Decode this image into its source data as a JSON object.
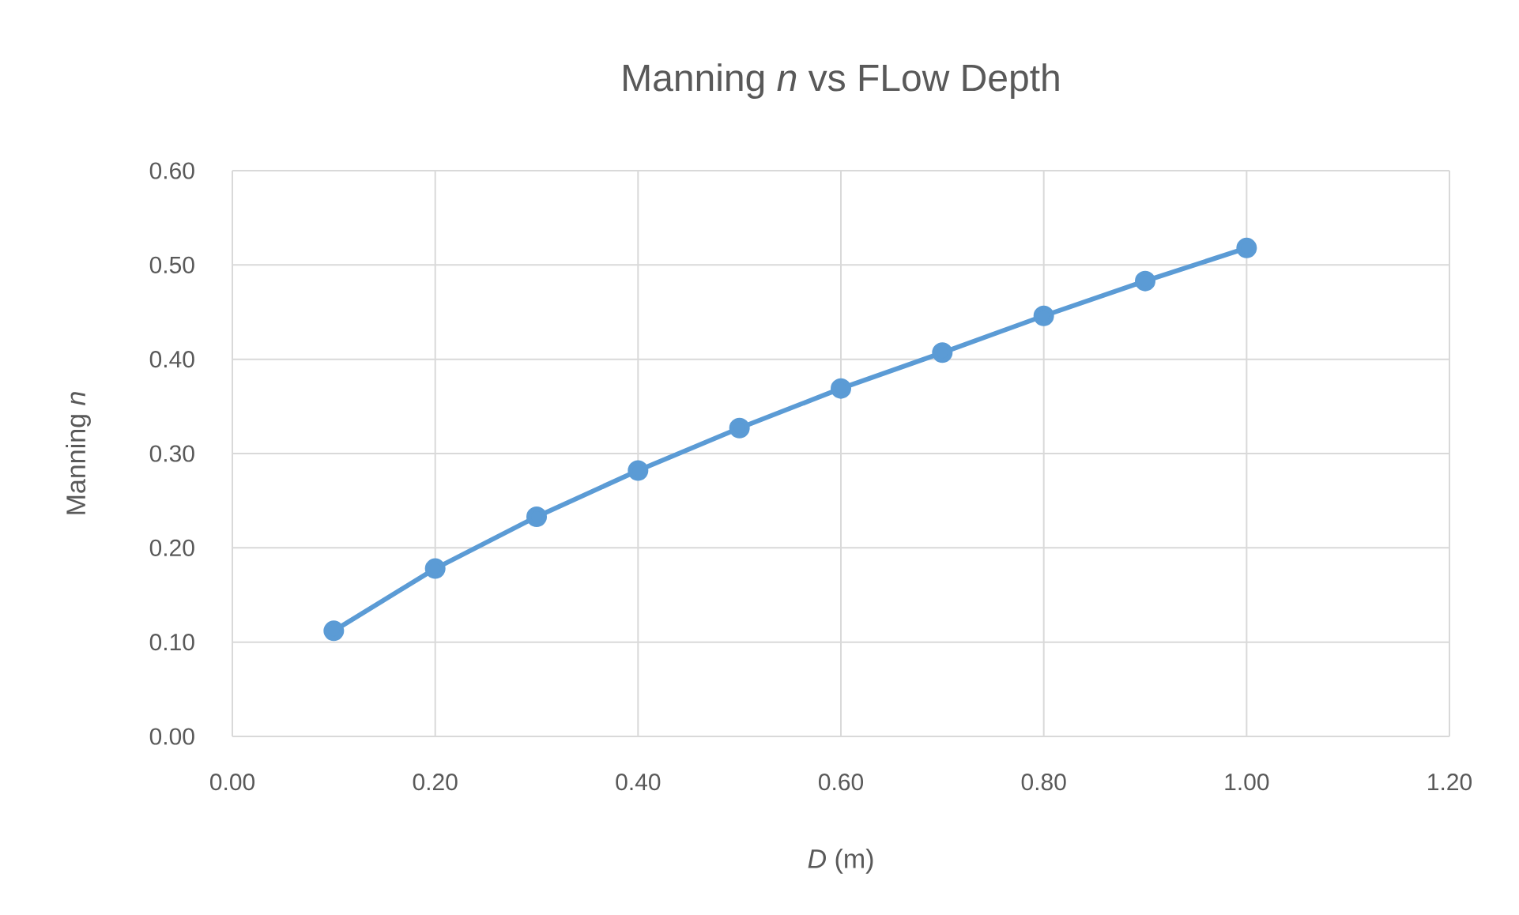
{
  "chart_data": {
    "type": "line",
    "title": "Manning *n* vs FLow Depth",
    "xlabel": "*D* (m)",
    "ylabel": "Manning *n*",
    "x": [
      0.1,
      0.2,
      0.3,
      0.4,
      0.5,
      0.6,
      0.7,
      0.8,
      0.9,
      1.0
    ],
    "series": [
      {
        "color": "#5b9bd5",
        "values": [
          0.112,
          0.178,
          0.233,
          0.282,
          0.327,
          0.369,
          0.407,
          0.446,
          0.483,
          0.518
        ]
      }
    ],
    "xlim": [
      0,
      1.2
    ],
    "ylim": [
      0,
      0.6
    ],
    "xticks": [
      {
        "value": 0,
        "label": "0.00"
      },
      {
        "value": 0.2,
        "label": "0.20"
      },
      {
        "value": 0.4,
        "label": "0.40"
      },
      {
        "value": 0.6,
        "label": "0.60"
      },
      {
        "value": 0.8,
        "label": "0.80"
      },
      {
        "value": 1.0,
        "label": "1.00"
      },
      {
        "value": 1.2,
        "label": "1.20"
      }
    ],
    "yticks": [
      {
        "value": 0,
        "label": "0.00"
      },
      {
        "value": 0.1,
        "label": "0.10"
      },
      {
        "value": 0.2,
        "label": "0.20"
      },
      {
        "value": 0.3,
        "label": "0.30"
      },
      {
        "value": 0.4,
        "label": "0.40"
      },
      {
        "value": 0.5,
        "label": "0.50"
      },
      {
        "value": 0.6,
        "label": "0.60"
      }
    ],
    "grid": true,
    "marker": "circle",
    "line_style": "solid"
  }
}
